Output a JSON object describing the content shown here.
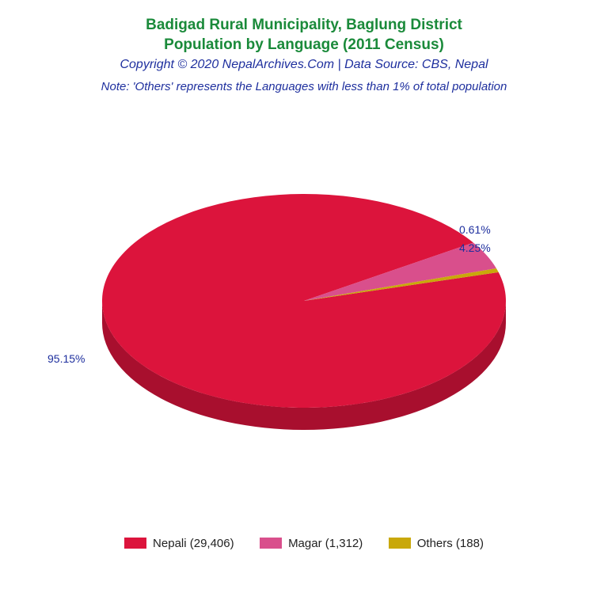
{
  "header": {
    "title_line1": "Badigad Rural Municipality, Baglung District",
    "title_line2": "Population by Language (2011 Census)",
    "title_color": "#1a8a3a",
    "title_fontsize": 19,
    "copyright": "Copyright © 2020 NepalArchives.Com | Data Source: CBS, Nepal",
    "copyright_color": "#1e2f9e",
    "copyright_fontsize": 16,
    "note": "Note: 'Others' represents the Languages with less than 1% of total population",
    "note_color": "#1e2f9e",
    "note_fontsize": 15
  },
  "chart": {
    "type": "pie",
    "is_3d": true,
    "background_color": "#ffffff",
    "slices": [
      {
        "label": "Nepali",
        "value": 29406,
        "percent": 95.15,
        "color": "#dc143c",
        "side_color": "#a80f2e"
      },
      {
        "label": "Magar",
        "value": 1312,
        "percent": 4.25,
        "color": "#d94f8c",
        "side_color": "#a83a6b"
      },
      {
        "label": "Others",
        "value": 188,
        "percent": 0.61,
        "color": "#c9a80a",
        "side_color": "#9a8008"
      }
    ],
    "pct_label_color": "#1e2f9e",
    "pct_label_fontsize": 14,
    "pct_labels": {
      "nepali": "95.15%",
      "magar": "4.25%",
      "others": "0.61%"
    }
  },
  "legend": {
    "text_color": "#222222",
    "fontsize": 15,
    "items": [
      {
        "text": "Nepali (29,406)",
        "color": "#dc143c"
      },
      {
        "text": "Magar (1,312)",
        "color": "#d94f8c"
      },
      {
        "text": "Others (188)",
        "color": "#c9a80a"
      }
    ]
  }
}
